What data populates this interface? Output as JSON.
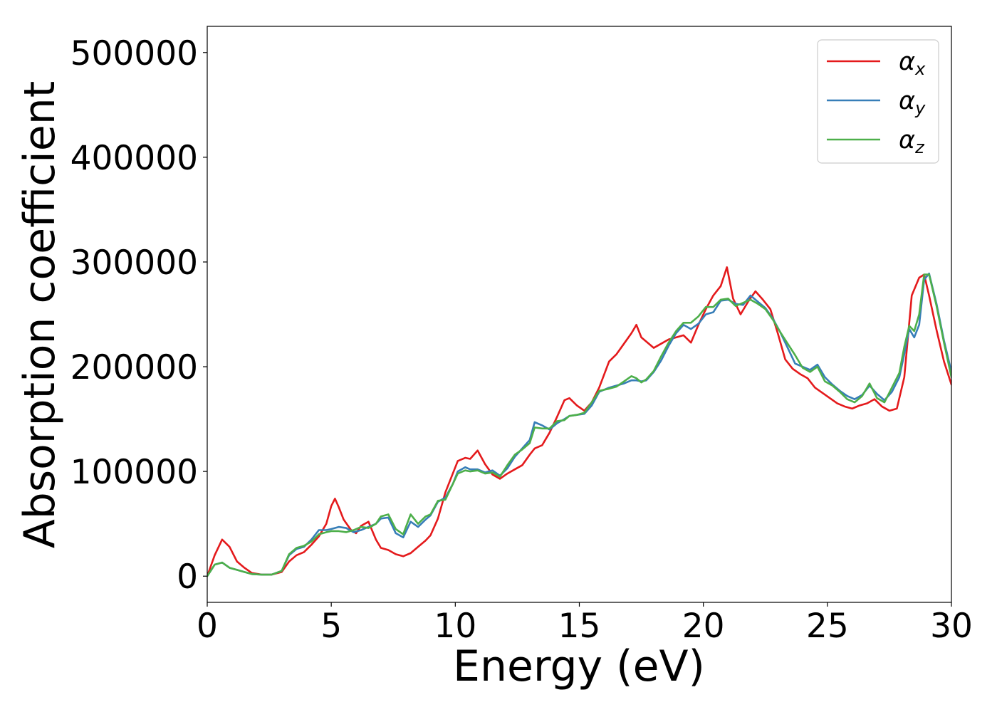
{
  "chart_data": {
    "type": "line",
    "title": "",
    "xlabel": "Energy (eV)",
    "ylabel": "Absorption coefficient",
    "xlim": [
      0,
      30
    ],
    "ylim": [
      -25000,
      525000
    ],
    "x_ticks": [
      0,
      5,
      10,
      15,
      20,
      25,
      30
    ],
    "y_ticks": [
      0,
      100000,
      200000,
      300000,
      400000,
      500000
    ],
    "x_tick_labels": [
      "0",
      "5",
      "10",
      "15",
      "20",
      "25",
      "30"
    ],
    "y_tick_labels": [
      "0",
      "100000",
      "200000",
      "300000",
      "400000",
      "500000"
    ],
    "grid": false,
    "legend_position": "top-right",
    "series": [
      {
        "name": "αx",
        "label_base": "α",
        "label_sub": "x",
        "color": "#e41a1c",
        "x": [
          0,
          0.3,
          0.6,
          0.9,
          1.2,
          1.5,
          1.8,
          2.2,
          2.6,
          3.0,
          3.3,
          3.6,
          3.9,
          4.2,
          4.5,
          4.8,
          5.0,
          5.15,
          5.3,
          5.5,
          5.8,
          6.0,
          6.2,
          6.5,
          6.8,
          7.0,
          7.3,
          7.6,
          7.9,
          8.2,
          8.5,
          8.8,
          9.0,
          9.3,
          9.6,
          9.9,
          10.1,
          10.4,
          10.6,
          10.9,
          11.2,
          11.5,
          11.8,
          12.1,
          12.4,
          12.7,
          13.0,
          13.2,
          13.5,
          13.8,
          14.1,
          14.4,
          14.6,
          14.9,
          15.2,
          15.5,
          15.8,
          16.2,
          16.5,
          16.8,
          17.1,
          17.3,
          17.5,
          17.7,
          18.0,
          18.3,
          18.6,
          18.9,
          19.2,
          19.5,
          19.8,
          20.1,
          20.4,
          20.7,
          20.95,
          21.2,
          21.5,
          21.8,
          22.1,
          22.4,
          22.7,
          23.0,
          23.3,
          23.6,
          23.9,
          24.2,
          24.5,
          24.8,
          25.1,
          25.4,
          25.7,
          26.0,
          26.3,
          26.6,
          26.9,
          27.2,
          27.5,
          27.8,
          28.1,
          28.4,
          28.7,
          28.9,
          29.1,
          29.4,
          29.7,
          30.0
        ],
        "values": [
          0,
          20000,
          35000,
          28000,
          14000,
          8000,
          3000,
          1500,
          1500,
          4000,
          14000,
          20000,
          23000,
          30000,
          38000,
          50000,
          67000,
          74000,
          66000,
          54000,
          44000,
          41000,
          48000,
          52000,
          35000,
          27000,
          25000,
          21000,
          19000,
          22000,
          28000,
          34000,
          39000,
          55000,
          80000,
          98000,
          110000,
          113000,
          112000,
          120000,
          107000,
          97000,
          93000,
          98000,
          102000,
          106000,
          116000,
          122000,
          125000,
          137000,
          152000,
          168000,
          170000,
          163000,
          158000,
          166000,
          180000,
          205000,
          212000,
          222000,
          232000,
          240000,
          228000,
          224000,
          218000,
          222000,
          226000,
          228000,
          230000,
          223000,
          240000,
          255000,
          268000,
          277000,
          295000,
          265000,
          250000,
          262000,
          272000,
          264000,
          255000,
          232000,
          207000,
          198000,
          193000,
          189000,
          180000,
          175000,
          170000,
          165000,
          162000,
          160000,
          163000,
          165000,
          169000,
          162000,
          158000,
          160000,
          190000,
          268000,
          285000,
          288000,
          268000,
          235000,
          205000,
          183000
        ]
      },
      {
        "name": "αy",
        "label_base": "α",
        "label_sub": "y",
        "color": "#377eb8",
        "x": [
          0,
          0.3,
          0.6,
          0.9,
          1.2,
          1.5,
          1.8,
          2.2,
          2.6,
          3.0,
          3.3,
          3.6,
          3.9,
          4.2,
          4.5,
          4.8,
          5.0,
          5.3,
          5.6,
          5.9,
          6.2,
          6.5,
          6.8,
          7.0,
          7.3,
          7.6,
          7.9,
          8.2,
          8.5,
          8.8,
          9.0,
          9.3,
          9.6,
          9.9,
          10.1,
          10.4,
          10.6,
          10.9,
          11.2,
          11.5,
          11.8,
          12.1,
          12.4,
          12.7,
          13.0,
          13.2,
          13.5,
          13.8,
          14.1,
          14.4,
          14.6,
          14.9,
          15.2,
          15.5,
          15.8,
          16.2,
          16.5,
          16.8,
          17.1,
          17.3,
          17.5,
          17.7,
          18.0,
          18.3,
          18.6,
          18.9,
          19.2,
          19.5,
          19.8,
          20.1,
          20.4,
          20.7,
          21.0,
          21.3,
          21.6,
          21.9,
          22.2,
          22.5,
          22.8,
          23.1,
          23.4,
          23.7,
          24.0,
          24.3,
          24.6,
          24.9,
          25.2,
          25.5,
          25.8,
          26.1,
          26.4,
          26.7,
          27.0,
          27.3,
          27.6,
          27.9,
          28.1,
          28.3,
          28.5,
          28.7,
          28.9,
          29.1,
          29.4,
          29.7,
          30.0
        ],
        "values": [
          0,
          11000,
          13000,
          8000,
          6000,
          4000,
          2000,
          1500,
          1500,
          5000,
          20000,
          26000,
          28000,
          35000,
          44000,
          44000,
          45000,
          47000,
          46000,
          42000,
          44000,
          47000,
          50000,
          55000,
          56000,
          41000,
          37000,
          52000,
          47000,
          54000,
          58000,
          71000,
          75000,
          88000,
          100000,
          104000,
          102000,
          102000,
          99000,
          101000,
          96000,
          103000,
          114000,
          122000,
          130000,
          147000,
          144000,
          140000,
          146000,
          150000,
          153000,
          154000,
          155000,
          163000,
          176000,
          180000,
          182000,
          184000,
          187000,
          187000,
          186000,
          187000,
          195000,
          206000,
          220000,
          232000,
          240000,
          236000,
          241000,
          250000,
          252000,
          263000,
          264000,
          260000,
          259000,
          268000,
          262000,
          256000,
          246000,
          233000,
          218000,
          203000,
          200000,
          197000,
          202000,
          190000,
          183000,
          177000,
          172000,
          169000,
          173000,
          182000,
          174000,
          168000,
          176000,
          190000,
          212000,
          236000,
          228000,
          240000,
          283000,
          289000,
          260000,
          225000,
          195000
        ]
      },
      {
        "name": "αz",
        "label_base": "α",
        "label_sub": "z",
        "color": "#4daf4a",
        "x": [
          0,
          0.3,
          0.6,
          0.9,
          1.2,
          1.5,
          1.8,
          2.2,
          2.6,
          3.0,
          3.3,
          3.6,
          3.9,
          4.2,
          4.5,
          4.8,
          5.0,
          5.3,
          5.6,
          5.9,
          6.2,
          6.5,
          6.8,
          7.0,
          7.3,
          7.6,
          7.9,
          8.2,
          8.5,
          8.8,
          9.0,
          9.3,
          9.6,
          9.9,
          10.1,
          10.4,
          10.6,
          10.9,
          11.2,
          11.5,
          11.8,
          12.1,
          12.4,
          12.7,
          13.0,
          13.2,
          13.5,
          13.8,
          14.1,
          14.4,
          14.6,
          14.9,
          15.2,
          15.5,
          15.8,
          16.2,
          16.5,
          16.8,
          17.1,
          17.3,
          17.5,
          17.7,
          18.0,
          18.3,
          18.6,
          18.9,
          19.2,
          19.5,
          19.8,
          20.1,
          20.4,
          20.7,
          21.0,
          21.3,
          21.6,
          21.9,
          22.2,
          22.5,
          22.8,
          23.1,
          23.4,
          23.7,
          24.0,
          24.3,
          24.6,
          24.9,
          25.2,
          25.5,
          25.8,
          26.1,
          26.4,
          26.7,
          27.0,
          27.3,
          27.6,
          27.9,
          28.1,
          28.3,
          28.5,
          28.7,
          28.9,
          29.1,
          29.4,
          29.7,
          30.0
        ],
        "values": [
          0,
          11000,
          13000,
          8000,
          6000,
          4000,
          2000,
          1500,
          1500,
          5000,
          21000,
          27000,
          29000,
          33000,
          40000,
          42000,
          43000,
          43000,
          42000,
          44000,
          47000,
          46000,
          50000,
          57000,
          59000,
          45000,
          40000,
          59000,
          50000,
          57000,
          59000,
          72000,
          73000,
          88000,
          98000,
          101000,
          100000,
          101000,
          98000,
          99000,
          95000,
          106000,
          116000,
          121000,
          127000,
          142000,
          141000,
          141000,
          148000,
          149000,
          153000,
          154000,
          156000,
          166000,
          177000,
          179000,
          181000,
          186000,
          191000,
          189000,
          185000,
          188000,
          196000,
          210000,
          223000,
          234000,
          242000,
          242000,
          248000,
          257000,
          257000,
          264000,
          265000,
          258000,
          261000,
          264000,
          260000,
          255000,
          245000,
          233000,
          222000,
          211000,
          199000,
          195000,
          200000,
          186000,
          182000,
          176000,
          169000,
          166000,
          172000,
          184000,
          170000,
          166000,
          180000,
          194000,
          219000,
          239000,
          234000,
          250000,
          288000,
          288000,
          258000,
          223000,
          190000
        ]
      }
    ]
  }
}
